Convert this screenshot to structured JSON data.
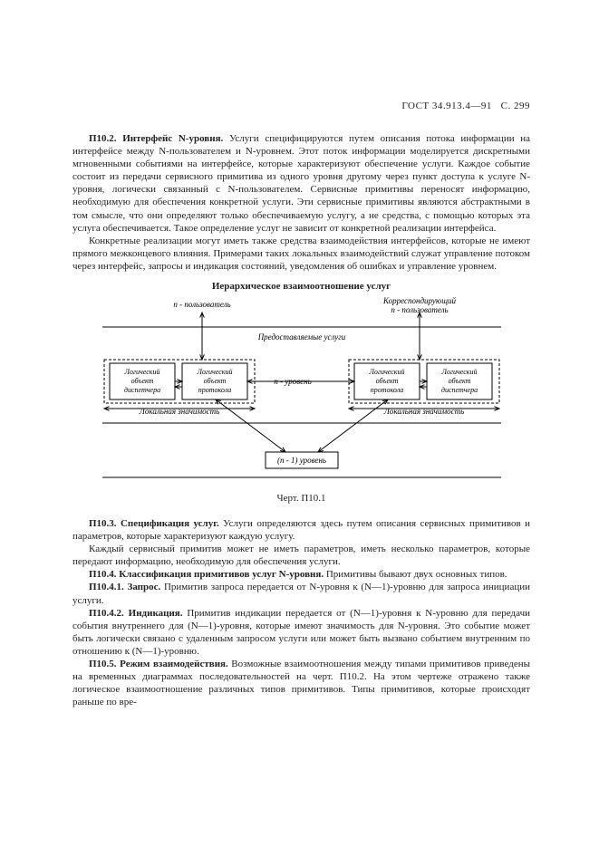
{
  "header": {
    "code": "ГОСТ 34.913.4—91",
    "page_label": "С. 299"
  },
  "para1": {
    "lead": "П10.2. Интерфейс N-уровня.",
    "text": " Услуги специфицируются путем описания потока информации на интерфейсе между N-пользователем и N-уровнем. Этот поток информации моделируется дискретными мгновенными событиями на интерфейсе, которые характеризуют обеспечение услуги. Каждое событие состоит из передачи сервисного примитива из одного уровня другому через пункт доступа к услуге N-уровня, логически связанный с N-пользователем. Сервисные примитивы переносят информацию, необходимую для обеспечения конкретной услуги. Эти сервисные примитивы являются абстрактными в том смысле, что они определяют только обеспечиваемую услугу, а не средства, с помощью которых эта услуга обеспечивается. Такое определение услуг не зависит от конкретной реализации интерфейса."
  },
  "para1b": "Конкретные реализации могут иметь также средства взаимодействия интерфейсов, которые не имеют прямого межконцевого влияния. Примерами таких локальных взаимодействий служат управление потоком через интерфейс, запросы и индикация состояний, уведомления об ошибках и управление уровнем.",
  "diagram_title": "Иерархическое взаимоотношение услуг",
  "diagram": {
    "n_user_left": "n - пользователь",
    "n_user_right": "Корреспондирующий\nn - пользователь",
    "services_provided": "Предоставляемые услуги",
    "logic_disp": "Логический\nобъект\nдиспетчера",
    "logic_proto": "Логический\nобъект\nпротокола",
    "n_level": "n - уровень",
    "local_sig": "Локальная значимость",
    "n1_level": "(n - 1) уровень",
    "colors": {
      "stroke": "#000000",
      "bg": "#ffffff",
      "dash": "3,2"
    }
  },
  "caption": "Черт. П10.1",
  "para2": {
    "lead": "П10.3. Спецификация услуг.",
    "text": " Услуги определяются здесь путем описания сервисных примитивов и параметров, которые характеризуют каждую услугу."
  },
  "para2b": "Каждый сервисный примитив может не иметь параметров, иметь несколько параметров, которые передают информацию, необходимую для обеспечения услуги.",
  "para3": {
    "lead": "П10.4. Классификация примитивов услуг N-уровня.",
    "text": " Примитивы бывают двух основных типов."
  },
  "para4": {
    "lead": "П10.4.1. Запрос.",
    "text": " Примитив запроса передается от N-уровня к (N—1)-уровню для запроса инициации услуги."
  },
  "para5": {
    "lead": "П10.4.2. Индикация.",
    "text": " Примитив индикации передается от (N—1)-уровня к N-уровню для передачи события внутреннего для (N—1)-уровня, которые имеют значимость для N-уровня. Это событие может быть логически связано с удаленным запросом услуги или может быть вызвано событием внутренним по отношению к (N—1)-уровню."
  },
  "para6": {
    "lead": "П10.5. Режим взаимодействия.",
    "text": " Возможные взаимоотношения между типами примитивов приведены на временных диаграммах последовательностей на черт. П10.2. На этом чертеже отражено также логическое взаимоотношение различных типов примитивов. Типы примитивов, которые происходят раньше по вре-"
  }
}
